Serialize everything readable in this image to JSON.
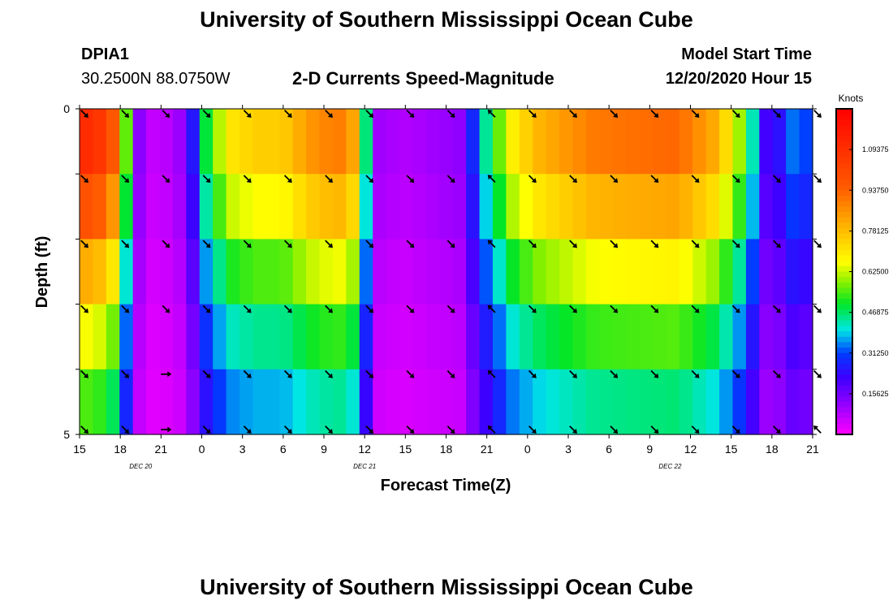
{
  "header": {
    "title": "University of Southern Mississippi Ocean Cube",
    "station_id": "DPIA1",
    "coordinates": "30.2500N 88.0750W",
    "subtitle": "2-D Currents Speed-Magnitude",
    "model_start_label": "Model Start Time",
    "model_start_value": "12/20/2020 Hour 15"
  },
  "footer": {
    "title": "University of Southern Mississippi Ocean Cube"
  },
  "chart_data": {
    "type": "heatmap",
    "title": "2-D Currents Speed-Magnitude",
    "xlabel": "Forecast Time(Z)",
    "ylabel": "Depth (ft)",
    "y_ticks": [
      "0",
      "5"
    ],
    "ylim": [
      0,
      5
    ],
    "x_tick_labels": [
      "15",
      "18",
      "21",
      "0",
      "3",
      "6",
      "9",
      "12",
      "15",
      "18",
      "21",
      "0",
      "3",
      "6",
      "9",
      "12",
      "15",
      "18",
      "21"
    ],
    "x_hours": [
      0,
      3,
      6,
      9,
      12,
      15,
      18,
      21,
      24,
      27,
      30,
      33,
      36,
      39,
      42,
      45,
      48,
      51,
      54
    ],
    "date_labels": [
      {
        "text": "DEC  20",
        "hour": 4.5
      },
      {
        "text": "DEC  21",
        "hour": 21
      },
      {
        "text": "DEC  22",
        "hour": 43.5
      }
    ],
    "colorbar": {
      "unit": "Knots",
      "vmin": 0.0,
      "vmax": 1.25,
      "tick_values": [
        1.09375,
        0.9375,
        0.78125,
        0.625,
        0.46875,
        0.3125,
        0.15625
      ],
      "tick_labels": [
        "1.09375",
        "0.93750",
        "0.78125",
        "0.62500",
        "0.46875",
        "0.31250",
        "0.15625"
      ]
    },
    "depth_layers": 5,
    "time_steps": 55,
    "speed_profile": [
      [
        0,
        1.12
      ],
      [
        2,
        1.05
      ],
      [
        3,
        0.85
      ],
      [
        3.6,
        0.45
      ],
      [
        4.2,
        0.15
      ],
      [
        5,
        0.06
      ],
      [
        7,
        0.08
      ],
      [
        8,
        0.15
      ],
      [
        9,
        0.45
      ],
      [
        11,
        0.7
      ],
      [
        13,
        0.75
      ],
      [
        15,
        0.75
      ],
      [
        17,
        0.85
      ],
      [
        19,
        0.9
      ],
      [
        20.5,
        0.8
      ],
      [
        21.3,
        0.35
      ],
      [
        22,
        0.1
      ],
      [
        24,
        0.08
      ],
      [
        28,
        0.12
      ],
      [
        30,
        0.45
      ],
      [
        32,
        0.7
      ],
      [
        34,
        0.8
      ],
      [
        38,
        0.9
      ],
      [
        44,
        0.93
      ],
      [
        47,
        0.8
      ],
      [
        49,
        0.55
      ],
      [
        51,
        0.12
      ],
      [
        52,
        0.35
      ],
      [
        54,
        0.3
      ]
    ],
    "depth_factors": [
      1.0,
      0.88,
      0.72,
      0.58,
      0.48,
      0.35
    ],
    "arrow_hours": [
      0,
      3,
      6,
      9,
      12,
      15,
      18,
      21,
      24,
      27,
      30,
      33,
      36,
      39,
      42,
      45,
      48,
      51,
      54
    ],
    "arrow_directions_deg": [
      135,
      135,
      135,
      135,
      135,
      135,
      135,
      135,
      135,
      135,
      -45,
      135,
      135,
      135,
      135,
      135,
      135,
      135,
      135
    ],
    "arrow_bottom_dir_deg": [
      135,
      135,
      90,
      135,
      135,
      135,
      135,
      135,
      135,
      135,
      -45,
      135,
      135,
      135,
      135,
      135,
      135,
      135,
      -45
    ]
  }
}
